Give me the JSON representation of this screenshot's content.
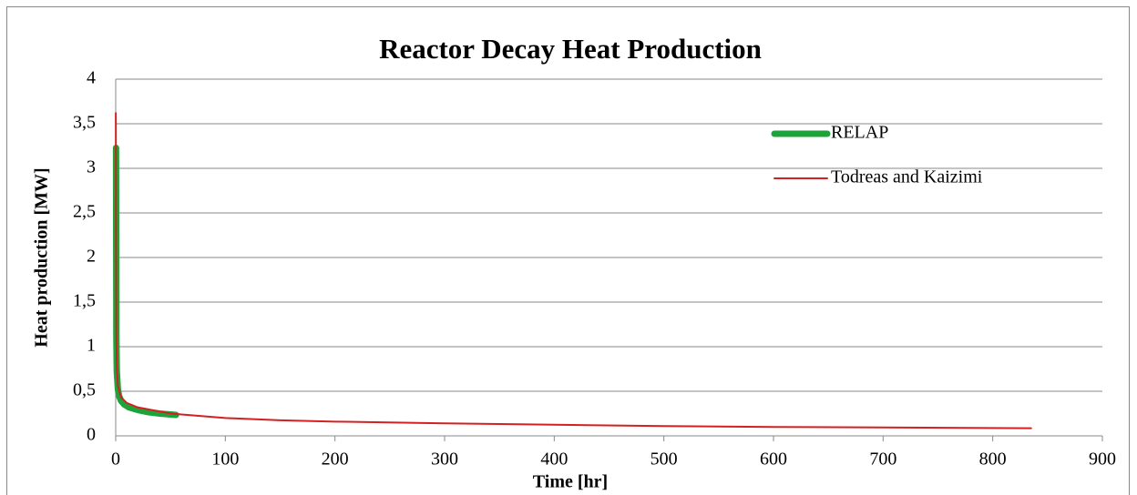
{
  "chart_data": {
    "type": "line",
    "title": "Reactor Decay Heat Production",
    "xlabel": "Time [hr]",
    "ylabel": "Heat production [MW]",
    "xlim": [
      0,
      900
    ],
    "xticks": [
      0,
      100,
      200,
      300,
      400,
      500,
      600,
      700,
      800,
      900
    ],
    "ylim": [
      0,
      4
    ],
    "yticks": [
      0,
      {
        "value": 0.5,
        "label": "0,5"
      },
      1,
      {
        "value": 1.5,
        "label": "1,5"
      },
      2,
      {
        "value": 2.5,
        "label": "2,5"
      },
      3,
      {
        "value": 3.5,
        "label": "3,5"
      },
      4
    ],
    "grid": true,
    "legend": "upper right",
    "series": [
      {
        "name": "RELAP",
        "color": "#1ea23a",
        "width": 7,
        "x": [
          0.3,
          0.6,
          1,
          2,
          3,
          5,
          8,
          12,
          20,
          30,
          40,
          55
        ],
        "values": [
          3.23,
          1.1,
          0.72,
          0.52,
          0.45,
          0.39,
          0.35,
          0.32,
          0.29,
          0.265,
          0.25,
          0.235
        ]
      },
      {
        "name": "Todreas and Kaizimi",
        "color": "#d42020",
        "width": 2,
        "x": [
          0.1,
          0.3,
          0.6,
          1,
          2,
          5,
          10,
          20,
          50,
          100,
          150,
          200,
          300,
          400,
          500,
          600,
          700,
          835
        ],
        "values": [
          3.62,
          2.2,
          1.2,
          0.78,
          0.56,
          0.43,
          0.37,
          0.32,
          0.25,
          0.2,
          0.175,
          0.16,
          0.14,
          0.125,
          0.11,
          0.1,
          0.095,
          0.085
        ]
      }
    ]
  }
}
